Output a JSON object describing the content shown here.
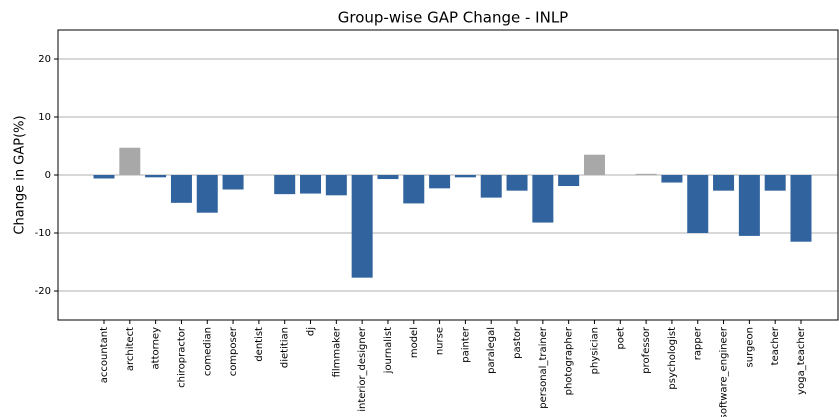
{
  "chart_data": {
    "type": "bar",
    "title": "Group-wise GAP Change - INLP",
    "y_label": "Change in GAP(%)",
    "categories": [
      "accountant",
      "architect",
      "attorney",
      "chiropractor",
      "comedian",
      "composer",
      "dentist",
      "dietitian",
      "dj",
      "filmmaker",
      "interior_designer",
      "journalist",
      "model",
      "nurse",
      "painter",
      "paralegal",
      "pastor",
      "personal_trainer",
      "photographer",
      "physician",
      "poet",
      "professor",
      "psychologist",
      "rapper",
      "software_engineer",
      "surgeon",
      "teacher",
      "yoga_teacher"
    ],
    "values": [
      -0.6,
      4.7,
      -0.4,
      -4.8,
      -6.5,
      -2.5,
      0,
      -3.3,
      -3.2,
      -3.5,
      -17.7,
      -0.7,
      -4.9,
      -2.3,
      -0.4,
      -3.9,
      -2.7,
      -8.2,
      -1.9,
      3.5,
      0,
      0.2,
      -1.3,
      -10.0,
      -2.7,
      -10.5,
      -2.7,
      -11.5
    ],
    "colors": [
      "#31639e",
      "#a8a8a8",
      "#31639e",
      "#31639e",
      "#31639e",
      "#31639e",
      "#31639e",
      "#31639e",
      "#31639e",
      "#31639e",
      "#31639e",
      "#31639e",
      "#31639e",
      "#31639e",
      "#31639e",
      "#31639e",
      "#31639e",
      "#31639e",
      "#31639e",
      "#a8a8a8",
      "#31639e",
      "#a8a8a8",
      "#31639e",
      "#31639e",
      "#31639e",
      "#31639e",
      "#31639e",
      "#31639e"
    ],
    "ylim": [
      -25,
      25
    ],
    "yticks": [
      -20,
      -10,
      0,
      10,
      20
    ],
    "grid": true
  }
}
